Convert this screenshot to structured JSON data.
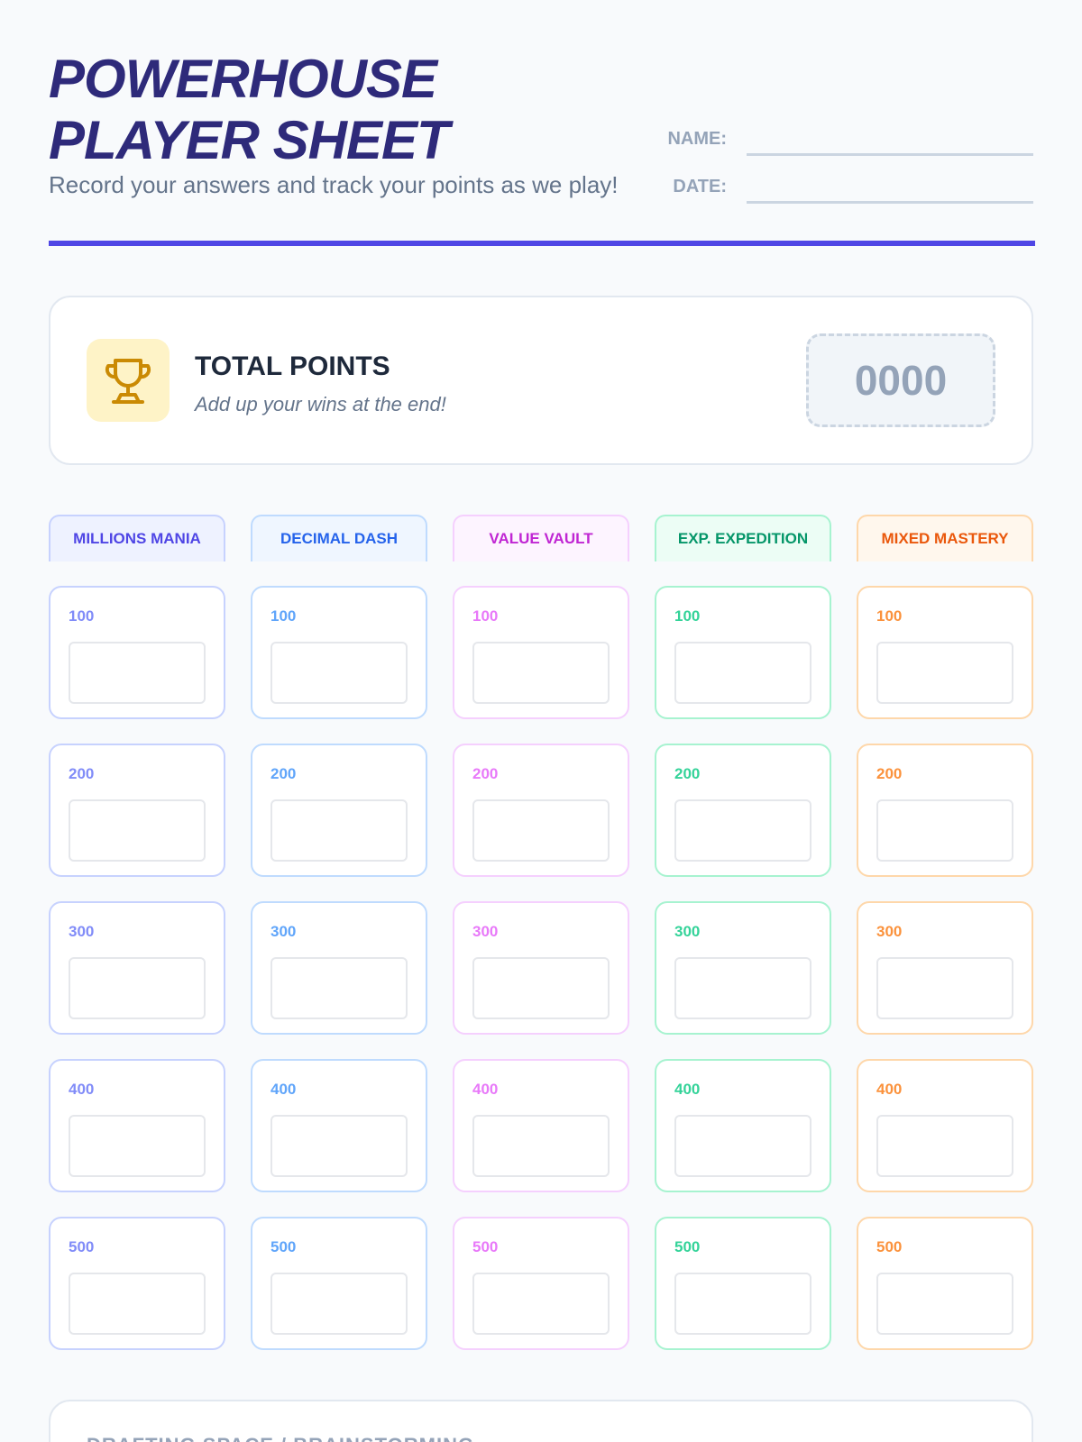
{
  "header": {
    "title": [
      "POWERHOUSE",
      "PLAYER SHEET"
    ],
    "subtitle": "Record your answers and track your points as we play!",
    "fields": [
      "NAME:",
      "DATE:"
    ]
  },
  "total": {
    "label": "TOTAL POINTS",
    "hint": "Add up your wins at the end!",
    "value": "0000"
  },
  "board": {
    "categories": [
      {
        "name": "MILLIONS MANIA",
        "color": "#4f46e5",
        "light": "#818cf8",
        "bg": "#eef2ff",
        "border": "#c7d2fe"
      },
      {
        "name": "DECIMAL DASH",
        "color": "#2563eb",
        "light": "#60a5fa",
        "bg": "#eff6ff",
        "border": "#bfdbfe"
      },
      {
        "name": "VALUE VAULT",
        "color": "#c026d3",
        "light": "#e879f9",
        "bg": "#fdf4ff",
        "border": "#f5d0fe"
      },
      {
        "name": "EXP. EXPEDITION",
        "color": "#059669",
        "light": "#34d399",
        "bg": "#ecfdf5",
        "border": "#a7f3d0"
      },
      {
        "name": "MIXED MASTERY",
        "color": "#ea580c",
        "light": "#fb923c",
        "bg": "#fff7ed",
        "border": "#fed7aa"
      }
    ],
    "points": [
      100,
      200,
      300,
      400,
      500
    ]
  },
  "drafting": {
    "title": "DRAFTING SPACE / BRAINSTORMING"
  }
}
